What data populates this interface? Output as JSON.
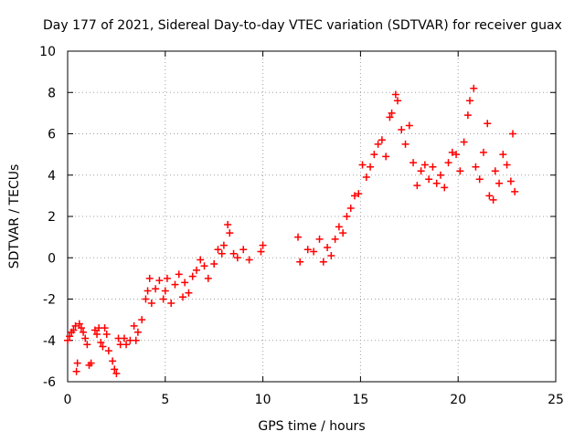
{
  "chart_data": {
    "type": "scatter",
    "title": "Day 177 of 2021, Sidereal Day-to-day VTEC variation (SDTVAR) for receiver guax",
    "xlabel": "GPS time / hours",
    "ylabel": "SDTVAR / TECUs",
    "xlim": [
      0,
      25
    ],
    "ylim": [
      -6,
      10
    ],
    "xticks": [
      0,
      5,
      10,
      15,
      20,
      25
    ],
    "yticks": [
      -6,
      -4,
      -2,
      0,
      2,
      4,
      6,
      8,
      10
    ],
    "grid": true,
    "marker": "+",
    "colors": {
      "series": "#ff0000",
      "grid": "#a0a0a0",
      "axis": "#000000"
    },
    "series": [
      {
        "name": "SDTVAR",
        "points": [
          [
            0.0,
            -4.0
          ],
          [
            0.1,
            -3.8
          ],
          [
            0.2,
            -3.6
          ],
          [
            0.3,
            -3.5
          ],
          [
            0.4,
            -3.3
          ],
          [
            0.45,
            -5.5
          ],
          [
            0.5,
            -5.1
          ],
          [
            0.6,
            -3.2
          ],
          [
            0.7,
            -3.4
          ],
          [
            0.8,
            -3.6
          ],
          [
            0.9,
            -3.9
          ],
          [
            1.0,
            -4.2
          ],
          [
            1.1,
            -5.2
          ],
          [
            1.2,
            -5.1
          ],
          [
            1.4,
            -3.5
          ],
          [
            1.5,
            -3.7
          ],
          [
            1.6,
            -3.4
          ],
          [
            1.7,
            -4.1
          ],
          [
            1.8,
            -4.3
          ],
          [
            1.9,
            -3.4
          ],
          [
            2.0,
            -3.7
          ],
          [
            2.1,
            -4.5
          ],
          [
            2.3,
            -5.0
          ],
          [
            2.4,
            -5.4
          ],
          [
            2.5,
            -5.6
          ],
          [
            2.6,
            -3.9
          ],
          [
            2.7,
            -4.2
          ],
          [
            2.9,
            -3.9
          ],
          [
            3.0,
            -4.2
          ],
          [
            3.2,
            -4.0
          ],
          [
            3.4,
            -3.3
          ],
          [
            3.5,
            -4.0
          ],
          [
            3.6,
            -3.6
          ],
          [
            3.8,
            -3.0
          ],
          [
            4.0,
            -2.0
          ],
          [
            4.1,
            -1.6
          ],
          [
            4.2,
            -1.0
          ],
          [
            4.3,
            -2.2
          ],
          [
            4.5,
            -1.5
          ],
          [
            4.7,
            -1.1
          ],
          [
            4.9,
            -2.0
          ],
          [
            5.0,
            -1.6
          ],
          [
            5.1,
            -1.0
          ],
          [
            5.3,
            -2.2
          ],
          [
            5.5,
            -1.3
          ],
          [
            5.7,
            -0.8
          ],
          [
            5.9,
            -1.9
          ],
          [
            6.0,
            -1.2
          ],
          [
            6.2,
            -1.7
          ],
          [
            6.4,
            -0.9
          ],
          [
            6.6,
            -0.6
          ],
          [
            6.8,
            -0.1
          ],
          [
            7.0,
            -0.4
          ],
          [
            7.2,
            -1.0
          ],
          [
            7.5,
            -0.3
          ],
          [
            7.7,
            0.4
          ],
          [
            7.9,
            0.2
          ],
          [
            8.0,
            0.6
          ],
          [
            8.2,
            1.6
          ],
          [
            8.3,
            1.2
          ],
          [
            8.5,
            0.2
          ],
          [
            8.7,
            0.0
          ],
          [
            9.0,
            0.4
          ],
          [
            9.3,
            -0.1
          ],
          [
            9.9,
            0.3
          ],
          [
            10.0,
            0.6
          ],
          [
            11.8,
            1.0
          ],
          [
            11.9,
            -0.2
          ],
          [
            12.3,
            0.4
          ],
          [
            12.6,
            0.3
          ],
          [
            12.9,
            0.9
          ],
          [
            13.1,
            -0.2
          ],
          [
            13.3,
            0.5
          ],
          [
            13.5,
            0.1
          ],
          [
            13.7,
            0.9
          ],
          [
            13.9,
            1.5
          ],
          [
            14.1,
            1.2
          ],
          [
            14.3,
            2.0
          ],
          [
            14.5,
            2.4
          ],
          [
            14.7,
            3.0
          ],
          [
            14.9,
            3.1
          ],
          [
            15.1,
            4.5
          ],
          [
            15.3,
            3.9
          ],
          [
            15.5,
            4.4
          ],
          [
            15.7,
            5.0
          ],
          [
            15.9,
            5.5
          ],
          [
            16.1,
            5.7
          ],
          [
            16.3,
            4.9
          ],
          [
            16.5,
            6.8
          ],
          [
            16.6,
            7.0
          ],
          [
            16.8,
            7.9
          ],
          [
            16.9,
            7.6
          ],
          [
            17.1,
            6.2
          ],
          [
            17.3,
            5.5
          ],
          [
            17.5,
            6.4
          ],
          [
            17.7,
            4.6
          ],
          [
            17.9,
            3.5
          ],
          [
            18.1,
            4.2
          ],
          [
            18.3,
            4.5
          ],
          [
            18.5,
            3.8
          ],
          [
            18.7,
            4.4
          ],
          [
            18.9,
            3.6
          ],
          [
            19.1,
            4.0
          ],
          [
            19.3,
            3.4
          ],
          [
            19.5,
            4.6
          ],
          [
            19.7,
            5.1
          ],
          [
            19.9,
            5.0
          ],
          [
            20.1,
            4.2
          ],
          [
            20.3,
            5.6
          ],
          [
            20.5,
            6.9
          ],
          [
            20.6,
            7.6
          ],
          [
            20.8,
            8.2
          ],
          [
            20.9,
            4.4
          ],
          [
            21.1,
            3.8
          ],
          [
            21.3,
            5.1
          ],
          [
            21.5,
            6.5
          ],
          [
            21.6,
            3.0
          ],
          [
            21.8,
            2.8
          ],
          [
            21.9,
            4.2
          ],
          [
            22.1,
            3.6
          ],
          [
            22.3,
            5.0
          ],
          [
            22.5,
            4.5
          ],
          [
            22.7,
            3.7
          ],
          [
            22.8,
            6.0
          ],
          [
            22.9,
            3.2
          ]
        ]
      }
    ]
  }
}
